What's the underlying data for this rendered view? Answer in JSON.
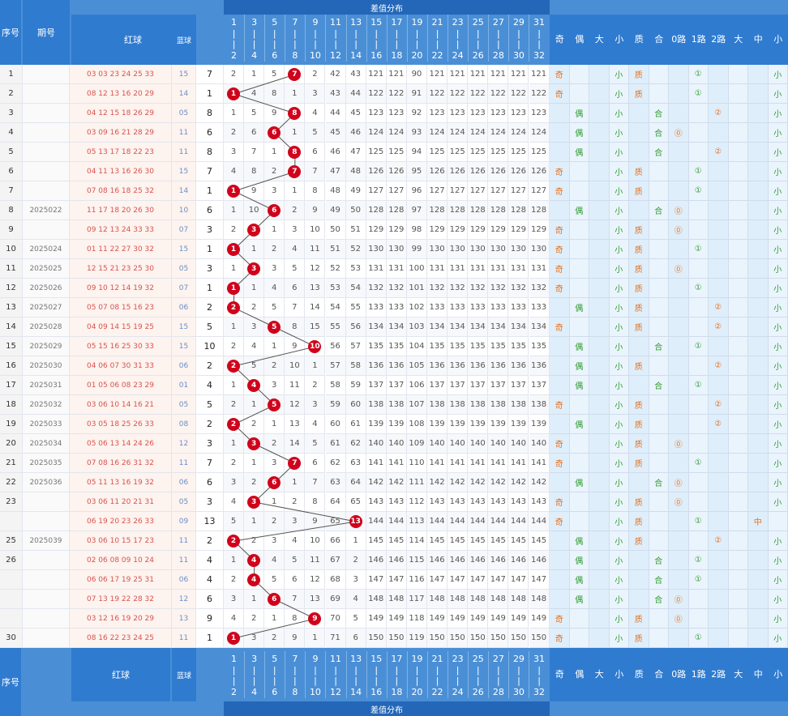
{
  "header": {
    "seq_label": "序号",
    "period_label": "期号",
    "red_label": "红球",
    "blue_label": "蓝球",
    "dist_title": "差值分布",
    "dist_cols": [
      {
        "top": "1",
        "bot": "2"
      },
      {
        "top": "3",
        "bot": "4"
      },
      {
        "top": "5",
        "bot": "6"
      },
      {
        "top": "7",
        "bot": "8"
      },
      {
        "top": "9",
        "bot": "10"
      },
      {
        "top": "11",
        "bot": "12"
      },
      {
        "top": "13",
        "bot": "14"
      },
      {
        "top": "15",
        "bot": "16"
      },
      {
        "top": "17",
        "bot": "18"
      },
      {
        "top": "19",
        "bot": "20"
      },
      {
        "top": "21",
        "bot": "22"
      },
      {
        "top": "23",
        "bot": "24"
      },
      {
        "top": "25",
        "bot": "26"
      },
      {
        "top": "27",
        "bot": "28"
      },
      {
        "top": "29",
        "bot": "30"
      },
      {
        "top": "31",
        "bot": "32"
      }
    ],
    "trend_cols": [
      "奇",
      "偶",
      "大",
      "小",
      "质",
      "合",
      "0路",
      "1路",
      "2路",
      "大",
      "中",
      "小"
    ]
  },
  "rows": [
    {
      "seq": "1",
      "period": "",
      "red": "03 03 23 24 25 33",
      "blue": "15",
      "span": "7",
      "dist": [
        "2",
        "1",
        "5",
        "7",
        "2",
        "42",
        "43",
        "121",
        "121",
        "90",
        "121",
        "121",
        "121",
        "121",
        "121",
        "121"
      ],
      "marks": [
        "奇",
        "",
        "",
        "小",
        "质",
        "",
        "",
        "①",
        "",
        "",
        "",
        "小"
      ]
    },
    {
      "seq": "2",
      "period": "",
      "red": "08 12 13 16 20 29",
      "blue": "14",
      "span": "1",
      "dist": [
        "1",
        "4",
        "8",
        "1",
        "3",
        "43",
        "44",
        "122",
        "122",
        "91",
        "122",
        "122",
        "122",
        "122",
        "122",
        "122"
      ],
      "marks": [
        "奇",
        "",
        "",
        "小",
        "质",
        "",
        "",
        "①",
        "",
        "",
        "",
        "小"
      ]
    },
    {
      "seq": "3",
      "period": "",
      "red": "04 12 15 18 26 29",
      "blue": "05",
      "span": "8",
      "dist": [
        "1",
        "5",
        "9",
        "8",
        "4",
        "44",
        "45",
        "123",
        "123",
        "92",
        "123",
        "123",
        "123",
        "123",
        "123",
        "123"
      ],
      "marks": [
        "",
        "偶",
        "",
        "小",
        "",
        "合",
        "",
        "",
        "②",
        "",
        "",
        "小"
      ]
    },
    {
      "seq": "4",
      "period": "",
      "red": "03 09 16 21 28 29",
      "blue": "11",
      "span": "6",
      "dist": [
        "2",
        "6",
        "6",
        "1",
        "5",
        "45",
        "46",
        "124",
        "124",
        "93",
        "124",
        "124",
        "124",
        "124",
        "124",
        "124"
      ],
      "marks": [
        "",
        "偶",
        "",
        "小",
        "",
        "合",
        "⓪",
        "",
        "",
        "",
        "",
        "小"
      ]
    },
    {
      "seq": "5",
      "period": "",
      "red": "05 13 17 18 22 23",
      "blue": "11",
      "span": "8",
      "dist": [
        "3",
        "7",
        "1",
        "8",
        "6",
        "46",
        "47",
        "125",
        "125",
        "94",
        "125",
        "125",
        "125",
        "125",
        "125",
        "125"
      ],
      "marks": [
        "",
        "偶",
        "",
        "小",
        "",
        "合",
        "",
        "",
        "②",
        "",
        "",
        "小"
      ]
    },
    {
      "seq": "6",
      "period": "",
      "red": "04 11 13 16 26 30",
      "blue": "15",
      "span": "7",
      "dist": [
        "4",
        "8",
        "2",
        "7",
        "7",
        "47",
        "48",
        "126",
        "126",
        "95",
        "126",
        "126",
        "126",
        "126",
        "126",
        "126"
      ],
      "marks": [
        "奇",
        "",
        "",
        "小",
        "质",
        "",
        "",
        "①",
        "",
        "",
        "",
        "小"
      ]
    },
    {
      "seq": "7",
      "period": "",
      "red": "07 08 16 18 25 32",
      "blue": "14",
      "span": "1",
      "dist": [
        "1",
        "9",
        "3",
        "1",
        "8",
        "48",
        "49",
        "127",
        "127",
        "96",
        "127",
        "127",
        "127",
        "127",
        "127",
        "127"
      ],
      "marks": [
        "奇",
        "",
        "",
        "小",
        "质",
        "",
        "",
        "①",
        "",
        "",
        "",
        "小"
      ]
    },
    {
      "seq": "8",
      "period": "2025022",
      "red": "11 17 18 20 26 30",
      "blue": "10",
      "span": "6",
      "dist": [
        "1",
        "10",
        "6",
        "2",
        "9",
        "49",
        "50",
        "128",
        "128",
        "97",
        "128",
        "128",
        "128",
        "128",
        "128",
        "128"
      ],
      "marks": [
        "",
        "偶",
        "",
        "小",
        "",
        "合",
        "⓪",
        "",
        "",
        "",
        "",
        "小"
      ]
    },
    {
      "seq": "9",
      "period": "",
      "red": "09 12 13 24 33 33",
      "blue": "07",
      "span": "3",
      "dist": [
        "2",
        "3",
        "1",
        "3",
        "10",
        "50",
        "51",
        "129",
        "129",
        "98",
        "129",
        "129",
        "129",
        "129",
        "129",
        "129"
      ],
      "marks": [
        "奇",
        "",
        "",
        "小",
        "质",
        "",
        "⓪",
        "",
        "",
        "",
        "",
        "小"
      ]
    },
    {
      "seq": "10",
      "period": "2025024",
      "red": "01 11 22 27 30 32",
      "blue": "15",
      "span": "1",
      "dist": [
        "1",
        "1",
        "2",
        "4",
        "11",
        "51",
        "52",
        "130",
        "130",
        "99",
        "130",
        "130",
        "130",
        "130",
        "130",
        "130"
      ],
      "marks": [
        "奇",
        "",
        "",
        "小",
        "质",
        "",
        "",
        "①",
        "",
        "",
        "",
        "小"
      ]
    },
    {
      "seq": "11",
      "period": "2025025",
      "red": "12 15 21 23 25 30",
      "blue": "05",
      "span": "3",
      "dist": [
        "1",
        "3",
        "3",
        "5",
        "12",
        "52",
        "53",
        "131",
        "131",
        "100",
        "131",
        "131",
        "131",
        "131",
        "131",
        "131"
      ],
      "marks": [
        "奇",
        "",
        "",
        "小",
        "质",
        "",
        "⓪",
        "",
        "",
        "",
        "",
        "小"
      ]
    },
    {
      "seq": "12",
      "period": "2025026",
      "red": "09 10 12 14 19 32",
      "blue": "07",
      "span": "1",
      "dist": [
        "1",
        "1",
        "4",
        "6",
        "13",
        "53",
        "54",
        "132",
        "132",
        "101",
        "132",
        "132",
        "132",
        "132",
        "132",
        "132"
      ],
      "marks": [
        "奇",
        "",
        "",
        "小",
        "质",
        "",
        "",
        "①",
        "",
        "",
        "",
        "小"
      ]
    },
    {
      "seq": "13",
      "period": "2025027",
      "red": "05 07 08 15 16 23",
      "blue": "06",
      "span": "2",
      "dist": [
        "2",
        "2",
        "5",
        "7",
        "14",
        "54",
        "55",
        "133",
        "133",
        "102",
        "133",
        "133",
        "133",
        "133",
        "133",
        "133"
      ],
      "marks": [
        "",
        "偶",
        "",
        "小",
        "质",
        "",
        "",
        "",
        "②",
        "",
        "",
        "小"
      ]
    },
    {
      "seq": "14",
      "period": "2025028",
      "red": "04 09 14 15 19 25",
      "blue": "15",
      "span": "5",
      "dist": [
        "1",
        "3",
        "5",
        "8",
        "15",
        "55",
        "56",
        "134",
        "134",
        "103",
        "134",
        "134",
        "134",
        "134",
        "134",
        "134"
      ],
      "marks": [
        "奇",
        "",
        "",
        "小",
        "质",
        "",
        "",
        "",
        "②",
        "",
        "",
        "小"
      ]
    },
    {
      "seq": "15",
      "period": "2025029",
      "red": "05 15 16 25 30 33",
      "blue": "15",
      "span": "10",
      "dist": [
        "2",
        "4",
        "1",
        "9",
        "10",
        "56",
        "57",
        "135",
        "135",
        "104",
        "135",
        "135",
        "135",
        "135",
        "135",
        "135"
      ],
      "marks": [
        "",
        "偶",
        "",
        "小",
        "",
        "合",
        "",
        "①",
        "",
        "",
        "",
        "小"
      ]
    },
    {
      "seq": "16",
      "period": "2025030",
      "red": "04 06 07 30 31 33",
      "blue": "06",
      "span": "2",
      "dist": [
        "2",
        "5",
        "2",
        "10",
        "1",
        "57",
        "58",
        "136",
        "136",
        "105",
        "136",
        "136",
        "136",
        "136",
        "136",
        "136"
      ],
      "marks": [
        "",
        "偶",
        "",
        "小",
        "质",
        "",
        "",
        "",
        "②",
        "",
        "",
        "小"
      ]
    },
    {
      "seq": "17",
      "period": "2025031",
      "red": "01 05 06 08 23 29",
      "blue": "01",
      "span": "4",
      "dist": [
        "1",
        "4",
        "3",
        "11",
        "2",
        "58",
        "59",
        "137",
        "137",
        "106",
        "137",
        "137",
        "137",
        "137",
        "137",
        "137"
      ],
      "marks": [
        "",
        "偶",
        "",
        "小",
        "",
        "合",
        "",
        "①",
        "",
        "",
        "",
        "小"
      ]
    },
    {
      "seq": "18",
      "period": "2025032",
      "red": "03 06 10 14 16 21",
      "blue": "05",
      "span": "5",
      "dist": [
        "2",
        "1",
        "5",
        "12",
        "3",
        "59",
        "60",
        "138",
        "138",
        "107",
        "138",
        "138",
        "138",
        "138",
        "138",
        "138"
      ],
      "marks": [
        "奇",
        "",
        "",
        "小",
        "质",
        "",
        "",
        "",
        "②",
        "",
        "",
        "小"
      ]
    },
    {
      "seq": "19",
      "period": "2025033",
      "red": "03 05 18 25 26 33",
      "blue": "08",
      "span": "2",
      "dist": [
        "2",
        "2",
        "1",
        "13",
        "4",
        "60",
        "61",
        "139",
        "139",
        "108",
        "139",
        "139",
        "139",
        "139",
        "139",
        "139"
      ],
      "marks": [
        "",
        "偶",
        "",
        "小",
        "质",
        "",
        "",
        "",
        "②",
        "",
        "",
        "小"
      ]
    },
    {
      "seq": "20",
      "period": "2025034",
      "red": "05 06 13 14 24 26",
      "blue": "12",
      "span": "3",
      "dist": [
        "1",
        "3",
        "2",
        "14",
        "5",
        "61",
        "62",
        "140",
        "140",
        "109",
        "140",
        "140",
        "140",
        "140",
        "140",
        "140"
      ],
      "marks": [
        "奇",
        "",
        "",
        "小",
        "质",
        "",
        "⓪",
        "",
        "",
        "",
        "",
        "小"
      ]
    },
    {
      "seq": "21",
      "period": "2025035",
      "red": "07 08 16 26 31 32",
      "blue": "11",
      "span": "7",
      "dist": [
        "2",
        "1",
        "3",
        "7",
        "6",
        "62",
        "63",
        "141",
        "141",
        "110",
        "141",
        "141",
        "141",
        "141",
        "141",
        "141"
      ],
      "marks": [
        "奇",
        "",
        "",
        "小",
        "质",
        "",
        "",
        "①",
        "",
        "",
        "",
        "小"
      ]
    },
    {
      "seq": "22",
      "period": "2025036",
      "red": "05 11 13 16 19 32",
      "blue": "06",
      "span": "6",
      "dist": [
        "3",
        "2",
        "6",
        "1",
        "7",
        "63",
        "64",
        "142",
        "142",
        "111",
        "142",
        "142",
        "142",
        "142",
        "142",
        "142"
      ],
      "marks": [
        "",
        "偶",
        "",
        "小",
        "",
        "合",
        "⓪",
        "",
        "",
        "",
        "",
        "小"
      ]
    },
    {
      "seq": "23",
      "period": "",
      "red": "03 06 11 20 21 31",
      "blue": "05",
      "span": "3",
      "dist": [
        "4",
        "3",
        "1",
        "2",
        "8",
        "64",
        "65",
        "143",
        "143",
        "112",
        "143",
        "143",
        "143",
        "143",
        "143",
        "143"
      ],
      "marks": [
        "奇",
        "",
        "",
        "小",
        "质",
        "",
        "⓪",
        "",
        "",
        "",
        "",
        "小"
      ]
    },
    {
      "seq": "",
      "period": "",
      "red": "06 19 20 23 26 33",
      "blue": "09",
      "span": "13",
      "dist": [
        "5",
        "1",
        "2",
        "3",
        "9",
        "65",
        "13",
        "144",
        "144",
        "113",
        "144",
        "144",
        "144",
        "144",
        "144",
        "144"
      ],
      "marks": [
        "奇",
        "",
        "",
        "小",
        "质",
        "",
        "",
        "①",
        "",
        "",
        "中",
        ""
      ]
    },
    {
      "seq": "25",
      "period": "2025039",
      "red": "03 06 10 15 17 23",
      "blue": "11",
      "span": "2",
      "dist": [
        "2",
        "2",
        "3",
        "4",
        "10",
        "66",
        "1",
        "145",
        "145",
        "114",
        "145",
        "145",
        "145",
        "145",
        "145",
        "145"
      ],
      "marks": [
        "",
        "偶",
        "",
        "小",
        "质",
        "",
        "",
        "",
        "②",
        "",
        "",
        "小"
      ]
    },
    {
      "seq": "26",
      "period": "",
      "red": "02 06 08 09 10 24",
      "blue": "11",
      "span": "4",
      "dist": [
        "1",
        "4",
        "4",
        "5",
        "11",
        "67",
        "2",
        "146",
        "146",
        "115",
        "146",
        "146",
        "146",
        "146",
        "146",
        "146"
      ],
      "marks": [
        "",
        "偶",
        "",
        "小",
        "",
        "合",
        "",
        "①",
        "",
        "",
        "",
        "小"
      ]
    },
    {
      "seq": "",
      "period": "",
      "red": "06 06 17 19 25 31",
      "blue": "06",
      "span": "4",
      "dist": [
        "2",
        "4",
        "5",
        "6",
        "12",
        "68",
        "3",
        "147",
        "147",
        "116",
        "147",
        "147",
        "147",
        "147",
        "147",
        "147"
      ],
      "marks": [
        "",
        "偶",
        "",
        "小",
        "",
        "合",
        "",
        "①",
        "",
        "",
        "",
        "小"
      ]
    },
    {
      "seq": "",
      "period": "",
      "red": "07 13 19 22 28 32",
      "blue": "12",
      "span": "6",
      "dist": [
        "3",
        "1",
        "6",
        "7",
        "13",
        "69",
        "4",
        "148",
        "148",
        "117",
        "148",
        "148",
        "148",
        "148",
        "148",
        "148"
      ],
      "marks": [
        "",
        "偶",
        "",
        "小",
        "",
        "合",
        "⓪",
        "",
        "",
        "",
        "",
        "小"
      ]
    },
    {
      "seq": "",
      "period": "",
      "red": "03 12 16 19 20 29",
      "blue": "13",
      "span": "9",
      "dist": [
        "4",
        "2",
        "1",
        "8",
        "9",
        "70",
        "5",
        "149",
        "149",
        "118",
        "149",
        "149",
        "149",
        "149",
        "149",
        "149"
      ],
      "marks": [
        "奇",
        "",
        "",
        "小",
        "质",
        "",
        "⓪",
        "",
        "",
        "",
        "",
        "小"
      ]
    },
    {
      "seq": "30",
      "period": "",
      "red": "08 16 22 23 24 25",
      "blue": "11",
      "span": "1",
      "dist": [
        "1",
        "3",
        "2",
        "9",
        "1",
        "71",
        "6",
        "150",
        "150",
        "119",
        "150",
        "150",
        "150",
        "150",
        "150",
        "150"
      ],
      "marks": [
        "奇",
        "",
        "",
        "小",
        "质",
        "",
        "",
        "①",
        "",
        "",
        "",
        "小"
      ]
    }
  ],
  "colors": {
    "header_bg": "#4a8fd6",
    "block_bg": "#2f7bd0",
    "ball": "#d0021b",
    "odd_mark": "#e8711c",
    "green_mark": "#2f9a2f",
    "trend_bg": "#dfeefb"
  }
}
